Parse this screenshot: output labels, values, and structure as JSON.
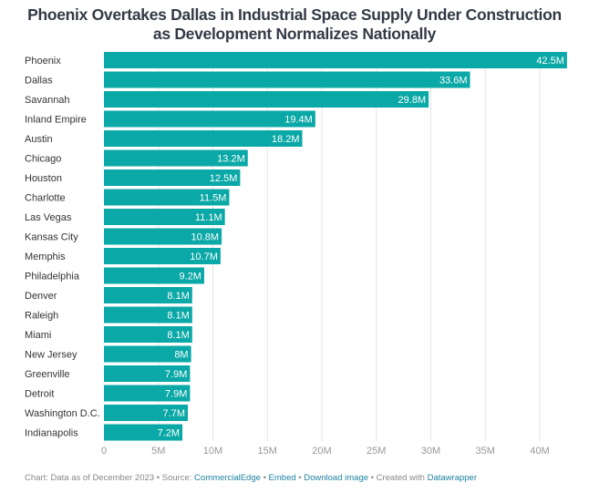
{
  "title_line1": "Phoenix Overtakes Dallas in Industrial Space Supply Under Construction",
  "title_line2": "as Development Normalizes Nationally",
  "colors": {
    "bar": "#0aa8a6",
    "label_text": "#333333",
    "bar_label_text": "#ffffff",
    "grid": "#e6e6e6",
    "tick_text": "#999999",
    "link": "#1d81a2"
  },
  "chart_data": {
    "type": "bar",
    "orientation": "horizontal",
    "title": "Phoenix Overtakes Dallas in Industrial Space Supply Under Construction as Development Normalizes Nationally",
    "xlabel": "",
    "ylabel": "",
    "unit_suffix": "M",
    "xlim": [
      0,
      42.5
    ],
    "grid": true,
    "categories": [
      "Phoenix",
      "Dallas",
      "Savannah",
      "Inland Empire",
      "Austin",
      "Chicago",
      "Houston",
      "Charlotte",
      "Las Vegas",
      "Kansas City",
      "Memphis",
      "Philadelphia",
      "Denver",
      "Raleigh",
      "Miami",
      "New Jersey",
      "Greenville",
      "Detroit",
      "Washington D.C.",
      "Indianapolis"
    ],
    "values": [
      42.5,
      33.6,
      29.8,
      19.4,
      18.2,
      13.2,
      12.5,
      11.5,
      11.1,
      10.8,
      10.7,
      9.2,
      8.1,
      8.1,
      8.1,
      8,
      7.9,
      7.9,
      7.7,
      7.2
    ],
    "data_labels": [
      "42.5M",
      "33.6M",
      "29.8M",
      "19.4M",
      "18.2M",
      "13.2M",
      "12.5M",
      "11.5M",
      "11.1M",
      "10.8M",
      "10.7M",
      "9.2M",
      "8.1M",
      "8.1M",
      "8.1M",
      "8M",
      "7.9M",
      "7.9M",
      "7.7M",
      "7.2M"
    ],
    "x_ticks": [
      0,
      5,
      10,
      15,
      20,
      25,
      30,
      35,
      40
    ],
    "x_tick_labels": [
      "0",
      "5M",
      "10M",
      "15M",
      "20M",
      "25M",
      "30M",
      "35M",
      "40M"
    ]
  },
  "footer": {
    "prefix": "Chart: Data as of December 2023",
    "source_label": "Source:",
    "source_link": "CommercialEdge",
    "embed_link": "Embed",
    "download_link": "Download image",
    "created_with": "Created with",
    "datawrapper_link": "Datawrapper",
    "separator": "•"
  }
}
